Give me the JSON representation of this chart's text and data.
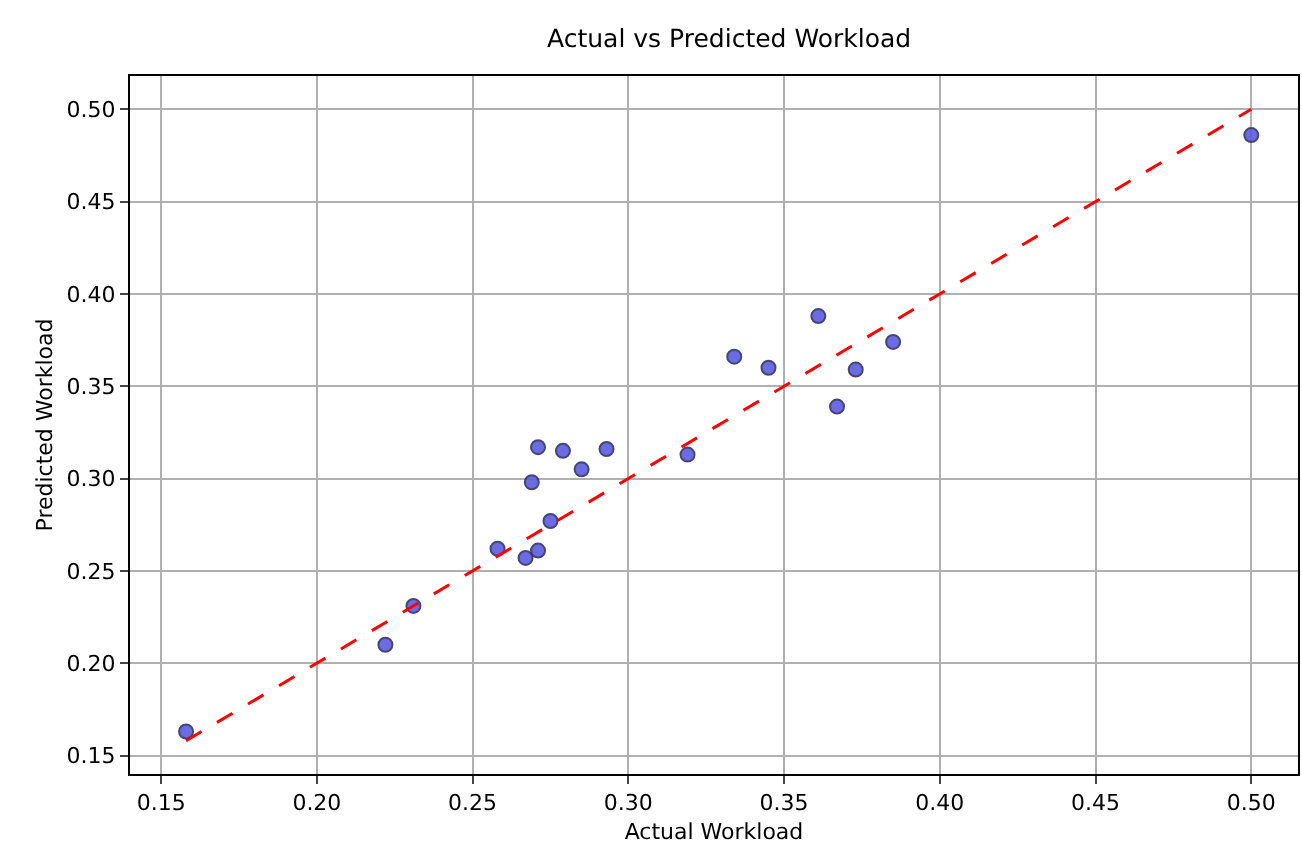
{
  "chart_data": {
    "type": "scatter",
    "title": "Actual vs Predicted Workload",
    "xlabel": "Actual Workload",
    "ylabel": "Predicted Workload",
    "xlim": [
      0.14,
      0.515
    ],
    "ylim": [
      0.14,
      0.518
    ],
    "xticks": [
      {
        "value": 0.15,
        "label": "0.15"
      },
      {
        "value": 0.2,
        "label": "0.20"
      },
      {
        "value": 0.25,
        "label": "0.25"
      },
      {
        "value": 0.3,
        "label": "0.30"
      },
      {
        "value": 0.35,
        "label": "0.35"
      },
      {
        "value": 0.4,
        "label": "0.40"
      },
      {
        "value": 0.45,
        "label": "0.45"
      },
      {
        "value": 0.5,
        "label": "0.50"
      }
    ],
    "yticks": [
      {
        "value": 0.15,
        "label": "0.15"
      },
      {
        "value": 0.2,
        "label": "0.20"
      },
      {
        "value": 0.25,
        "label": "0.25"
      },
      {
        "value": 0.3,
        "label": "0.30"
      },
      {
        "value": 0.35,
        "label": "0.35"
      },
      {
        "value": 0.4,
        "label": "0.40"
      },
      {
        "value": 0.45,
        "label": "0.45"
      },
      {
        "value": 0.5,
        "label": "0.50"
      }
    ],
    "grid": true,
    "series": [
      {
        "color": "#5b5be0",
        "marker": "circle",
        "x": [
          0.158,
          0.222,
          0.231,
          0.258,
          0.267,
          0.271,
          0.275,
          0.269,
          0.271,
          0.279,
          0.285,
          0.293,
          0.319,
          0.334,
          0.345,
          0.361,
          0.367,
          0.373,
          0.385,
          0.5
        ],
        "values": [
          0.163,
          0.21,
          0.231,
          0.262,
          0.257,
          0.261,
          0.277,
          0.298,
          0.317,
          0.315,
          0.305,
          0.316,
          0.313,
          0.366,
          0.36,
          0.388,
          0.339,
          0.359,
          0.374,
          0.486
        ]
      },
      {
        "type": "line",
        "color": "#ff0000",
        "line_style": "dashed",
        "marker": "none",
        "x": [
          0.158,
          0.5
        ],
        "values": [
          0.158,
          0.5
        ]
      }
    ]
  }
}
